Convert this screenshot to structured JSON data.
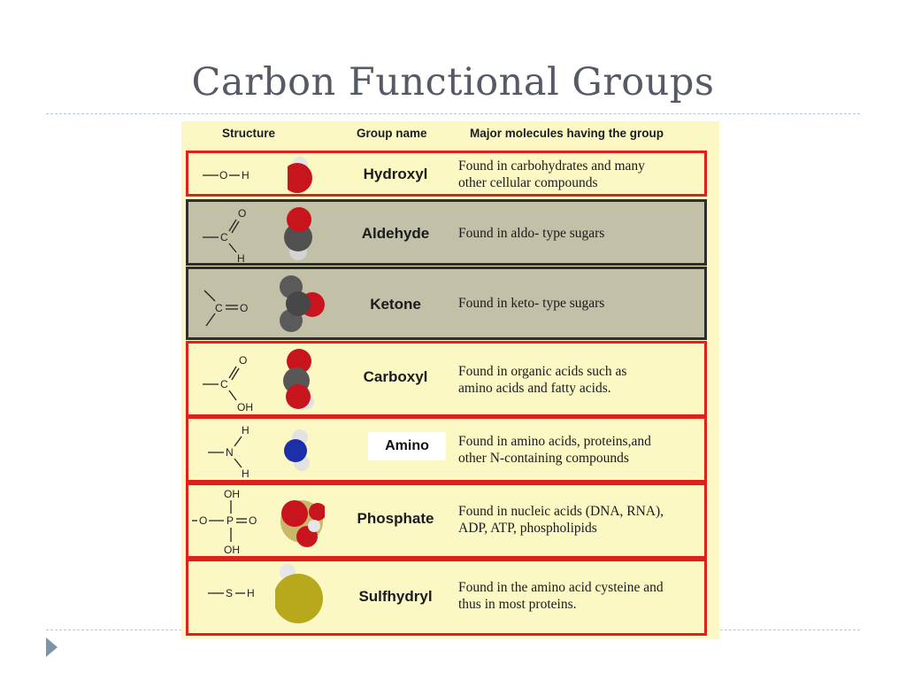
{
  "slide": {
    "title": "Carbon Functional Groups"
  },
  "table": {
    "headers": {
      "structure": "Structure",
      "group_name": "Group name",
      "molecules": "Major molecules having the group"
    },
    "rows": [
      {
        "name": "Hydroxyl",
        "desc_1": "Found in carbohydrates and many",
        "desc_2": "other cellular compounds"
      },
      {
        "name": "Aldehyde",
        "desc_1": "Found in aldo- type sugars",
        "desc_2": ""
      },
      {
        "name": "Ketone",
        "desc_1": "Found in keto- type sugars",
        "desc_2": ""
      },
      {
        "name": "Carboxyl",
        "desc_1": "Found in organic acids such as",
        "desc_2": "amino acids and fatty acids."
      },
      {
        "name": "Amino",
        "desc_1": "Found in amino acids, proteins,and",
        "desc_2": "other N-containing compounds"
      },
      {
        "name": "Phosphate",
        "desc_1": "Found in nucleic acids (DNA, RNA),",
        "desc_2": "ADP, ATP, phospholipids"
      },
      {
        "name": "Sulfhydryl",
        "desc_1": "Found in the amino acid cysteine and",
        "desc_2": "thus in most proteins."
      }
    ]
  },
  "atoms": {
    "O": "O",
    "H": "H",
    "C": "C",
    "N": "N",
    "P": "P",
    "S": "S",
    "OH": "OH"
  },
  "colors": {
    "border_red": "#e0201b",
    "panel_bg": "#fbf8c4",
    "shaded_row": "#c2c0a7",
    "oxygen": "#c8141c",
    "carbon": "#555555",
    "nitrogen": "#1d2fa8",
    "sulfur": "#b7a81c"
  },
  "icons": {
    "bullet": "triangle-bullet-icon"
  }
}
